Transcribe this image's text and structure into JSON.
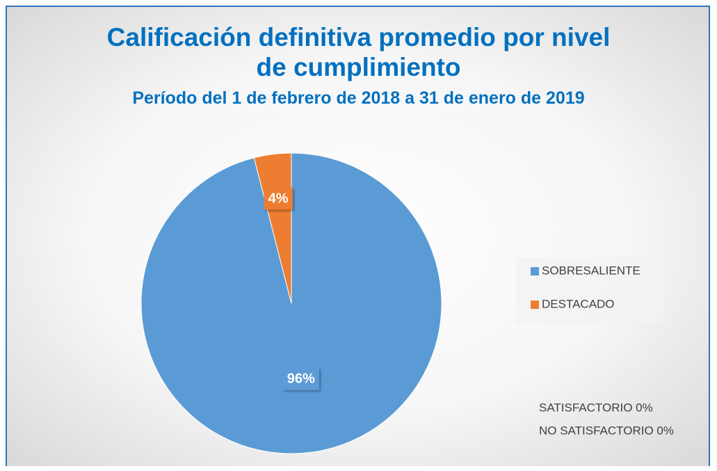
{
  "chart_data": {
    "type": "pie",
    "title": "Calificación definitiva promedio por nivel de cumplimiento",
    "subtitle": "Período del 1 de febrero de 2018 a 31 de enero de 2019",
    "categories": [
      "SOBRESALIENTE",
      "DESTACADO"
    ],
    "values": [
      96,
      4
    ],
    "value_labels": [
      "96%",
      "4%"
    ],
    "colors": [
      "#5b9bd5",
      "#ed7d31"
    ],
    "legend": "right",
    "annotations": [
      "SATISFACTORIO 0%",
      "NO SATISFACTORIO 0%"
    ]
  }
}
